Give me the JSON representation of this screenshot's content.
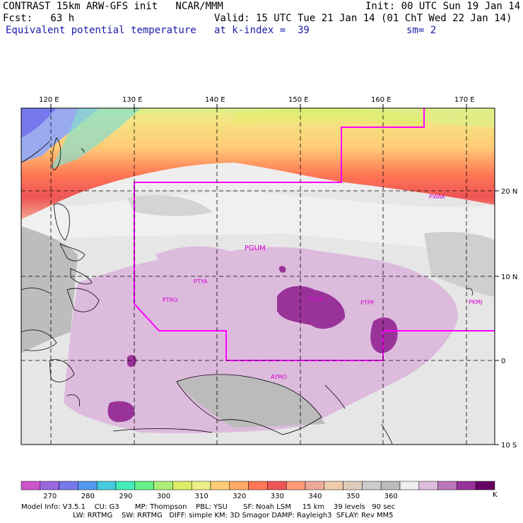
{
  "header": {
    "line1_left": "CONTRAST 15km ARW-GFS init   NCAR/MMM",
    "line1_right": "Init: 00 UTC Sun 19 Jan 14",
    "line2_left": "Fcst:   63 h",
    "line2_right": "Valid: 15 UTC Tue 21 Jan 14 (01 ChT Wed 22 Jan 14)",
    "line3_left": "Equivalent potential temperature",
    "line3_mid": "at k-index =  39",
    "line3_right": "sm= 2"
  },
  "axes": {
    "lon_labels": [
      "120 E",
      "130 E",
      "140 E",
      "150 E",
      "160 E",
      "170 E"
    ],
    "lat_labels": [
      "20 N",
      "10 N",
      "0",
      "10 S"
    ]
  },
  "stations": [
    "PTRO",
    "PTYA",
    "PGUM",
    "PTKK",
    "PTPP",
    "PKMJ",
    "PWAK",
    "AYMO"
  ],
  "colorbar": {
    "unit": "K",
    "ticks": [
      "270",
      "280",
      "290",
      "300",
      "310",
      "320",
      "330",
      "340",
      "350",
      "360"
    ],
    "colors": [
      "#cc55cc",
      "#9966dd",
      "#7777ee",
      "#5599ee",
      "#44ccdd",
      "#44eebb",
      "#66ee88",
      "#aaee77",
      "#ddee66",
      "#eeee88",
      "#ffcc77",
      "#ffaa66",
      "#ff7755",
      "#ee5555",
      "#ff9977",
      "#eeaa99",
      "#eeccaa",
      "#ddccbb",
      "#cccccc",
      "#bbbbbb",
      "#eeeeee",
      "#ddbbdd",
      "#bb77bb",
      "#993399",
      "#660066"
    ]
  },
  "model_info": {
    "line1": "Model Info: V3.5.1    CU: G3       MP: Thompson    PBL: YSU       SF: Noah LSM     15 km    39 levels   90 sec",
    "line2": "                       LW: RRTMG    SW: RRTMG   DIFF: simple KM: 3D Smagor DAMP: Rayleigh3  SFLAY: Rev MM5"
  }
}
